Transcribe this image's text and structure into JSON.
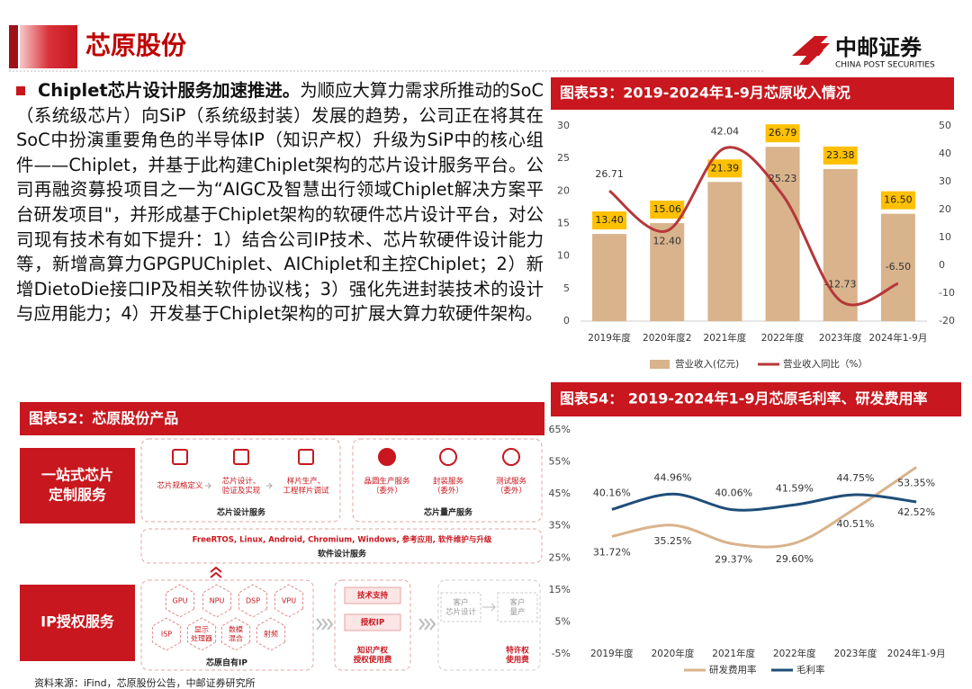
{
  "header": {
    "title": "芯原股份",
    "logo_cn": "中邮证券",
    "logo_en": "CHINA POST SECURITIES"
  },
  "body": {
    "lead": "Chiplet芯片设计服务加速推进。",
    "text": "为顺应大算力需求所推动的SoC（系统级芯片）向SiP（系统级封装）发展的趋势，公司正在将其在SoC中扮演重要角色的半导体IP（知识产权）升级为SiP中的核心组件——Chiplet，并基于此构建Chiplet架构的芯片设计服务平台。公司再融资募投项目之一为“AIGC及智慧出行领域Chiplet解决方案平台研发项目\"，并形成基于Chiplet架构的软硬件芯片设计平台，对公司现有技术有如下提升：1）结合公司IP技术、芯片软硬件设计能力等，新增高算力GPGPUChiplet、AIChiplet和主控Chiplet；2）新增DietoDie接口IP及相关软件协议栈；3）强化先进封装技术的设计与应用能力；4）开发基于Chiplet架构的可扩展大算力软硬件架构。"
  },
  "diagram": {
    "title": "图表52：芯原股份产品",
    "custom_service": [
      "一站式芯片",
      "定制服务"
    ],
    "design_items": [
      [
        "芯片规格定义"
      ],
      [
        "芯片设计、",
        "验证及实现"
      ],
      [
        "样片生产、",
        "工程样片调试"
      ]
    ],
    "design_group": "芯片设计服务",
    "production_items": [
      [
        "晶圆生产服务",
        "（委外）"
      ],
      [
        "封装服务",
        "（委外）"
      ],
      [
        "测试服务",
        "（委外）"
      ]
    ],
    "production_group": "芯片量产服务",
    "software_items": "FreeRTOS, Linux, Android, Chromium, Windows, 参考应用, 软件维护与升级",
    "software_group": "软件设计服务",
    "ip_service": "IP授权服务",
    "ip_cores": [
      [
        "GPU"
      ],
      [
        "NPU"
      ],
      [
        "DSP"
      ],
      [
        "VPU"
      ],
      [
        "ISP"
      ],
      [
        "显示",
        "处理器"
      ],
      [
        "数模",
        "混合"
      ],
      [
        "射频"
      ]
    ],
    "ip_group": "芯原自有IP",
    "licensing": [
      [
        "技术支持"
      ],
      [
        "授权IP"
      ],
      [
        "知识产权",
        "授权使用费"
      ]
    ],
    "customer": [
      [
        "客户",
        "芯片设计"
      ],
      [
        "客户",
        "量产"
      ],
      [
        "特许权",
        "使用费"
      ]
    ],
    "source": "资料来源：iFind，芯原股份公告，中邮证券研究所"
  },
  "chart_data": [
    {
      "type": "bar",
      "title": "图表53：2019-2024年1-9月芯原收入情况",
      "categories": [
        "2019年度",
        "2020年度2",
        "2021年度",
        "2022年度",
        "2023年度",
        "2024年1-9月"
      ],
      "series": [
        {
          "name": "营业收入(亿元)",
          "color": "#d9b38c",
          "values": [
            13.4,
            15.06,
            21.39,
            26.79,
            23.38,
            16.5
          ],
          "value_labels": [
            "13.40",
            "15.06",
            "21.39",
            "26.79",
            "23.38",
            "16.50"
          ]
        },
        {
          "name": "营业收入同比（%）",
          "type": "line",
          "axis": "y2",
          "color": "#b5373a",
          "values": [
            26.71,
            12.4,
            42.04,
            25.23,
            -12.73,
            -6.5
          ],
          "value_labels": [
            "26.71",
            "12.40",
            "42.04",
            "25.23",
            "-12.73",
            "-6.50"
          ]
        }
      ],
      "ylim": [
        0,
        30
      ],
      "yticks": [
        0,
        5,
        10,
        15,
        20,
        25,
        30
      ],
      "y2lim": [
        -20,
        50
      ],
      "y2ticks": [
        -20,
        -10,
        0,
        10,
        20,
        30,
        40,
        50
      ],
      "grid": false
    },
    {
      "type": "line",
      "title": "图表54：  2019-2024年1-9月芯原毛利率、研发费用率",
      "categories": [
        "2019年度",
        "2020年度",
        "2021年度",
        "2022年度",
        "2023年度",
        "2024年1-9月"
      ],
      "series": [
        {
          "name": "研发费用率",
          "color": "#d9b38c",
          "values": [
            31.72,
            35.25,
            29.37,
            29.6,
            40.51,
            53.35
          ],
          "value_labels": [
            "31.72%",
            "35.25%",
            "29.37%",
            "29.60%",
            "40.51%",
            "53.35%"
          ]
        },
        {
          "name": "毛利率",
          "color": "#1f4e79",
          "values": [
            40.16,
            44.96,
            40.06,
            41.59,
            44.75,
            42.52
          ],
          "value_labels": [
            "40.16%",
            "44.96%",
            "40.06%",
            "41.59%",
            "44.75%",
            "42.52%"
          ]
        }
      ],
      "ylim": [
        -5,
        65
      ],
      "yticks": [
        {
          "value": -5,
          "label": "-5%"
        },
        {
          "value": 5,
          "label": "5%"
        },
        {
          "value": 15,
          "label": "15%"
        },
        {
          "value": 25,
          "label": "25%"
        },
        {
          "value": 35,
          "label": "35%"
        },
        {
          "value": 45,
          "label": "45%"
        },
        {
          "value": 55,
          "label": "55%"
        },
        {
          "value": 65,
          "label": "65%"
        }
      ],
      "grid": false
    }
  ]
}
